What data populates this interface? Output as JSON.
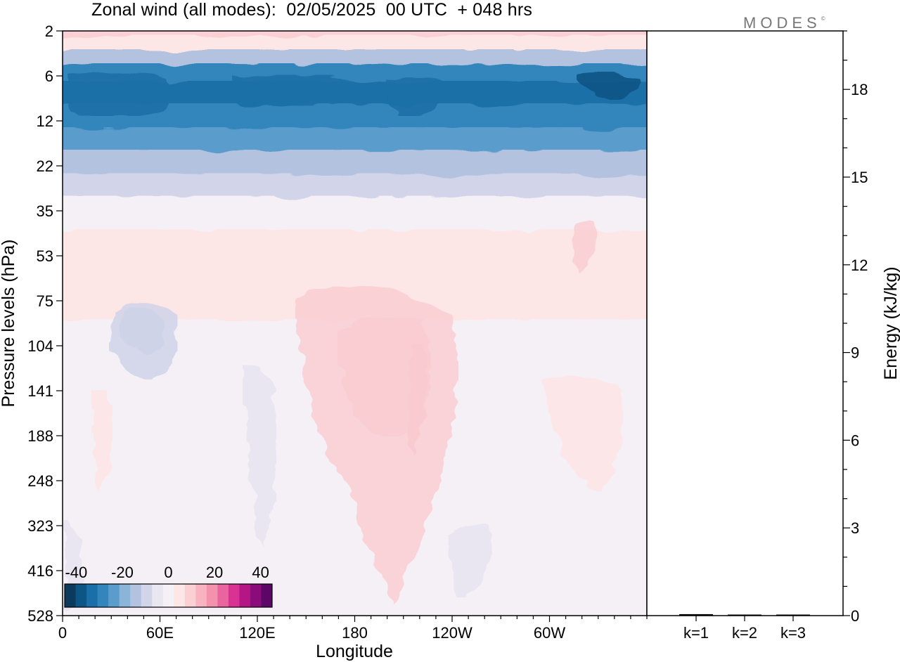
{
  "title": "Zonal wind (all modes):  02/05/2025  00 UTC  + 048 hrs",
  "logo": "MODES",
  "logo_mark": "©",
  "chart_data": [
    {
      "type": "heatmap",
      "xlabel": "Longitude",
      "ylabel": "Pressure levels (hPa)",
      "x_ticks": [
        "0",
        "60E",
        "120E",
        "180",
        "120W",
        "60W"
      ],
      "x_tick_degrees": [
        0,
        60,
        120,
        180,
        240,
        300
      ],
      "xlim": [
        0,
        360
      ],
      "y_ticks": [
        "2",
        "6",
        "12",
        "22",
        "35",
        "53",
        "75",
        "104",
        "141",
        "188",
        "248",
        "323",
        "416",
        "528"
      ],
      "colorbar": {
        "tick_labels": [
          "-40",
          "-20",
          "0",
          "20",
          "40"
        ],
        "tick_values": [
          -40,
          -20,
          0,
          20,
          40
        ],
        "range": [
          -45,
          45
        ],
        "colors": [
          "#0b3a5c",
          "#0d5585",
          "#1a6fa8",
          "#3386bb",
          "#5a9ccb",
          "#8ab4d8",
          "#b3c2de",
          "#d2d5e9",
          "#e9e6f1",
          "#f5f0f6",
          "#fde6e6",
          "#fad0d4",
          "#f7b3c0",
          "#f491ad",
          "#ea64a0",
          "#d93293",
          "#b51686",
          "#8a0b79",
          "#5c0667"
        ]
      },
      "layers": [
        {
          "level": "2",
          "wind": 10
        },
        {
          "level": "3",
          "wind": 4
        },
        {
          "level": "4",
          "wind": -15
        },
        {
          "level": "6",
          "wind": -30
        },
        {
          "level": "8",
          "wind": -33
        },
        {
          "level": "12",
          "wind": -28
        },
        {
          "level": "16",
          "wind": -24
        },
        {
          "level": "22",
          "wind": -16
        },
        {
          "level": "28",
          "wind": -8
        },
        {
          "level": "35",
          "wind": -2
        },
        {
          "level": "53",
          "wind": 5
        },
        {
          "level": "75",
          "wind": 3
        },
        {
          "level": "104",
          "wind": 0
        },
        {
          "level": "141",
          "wind": 1
        },
        {
          "level": "188",
          "wind": 1
        },
        {
          "level": "248",
          "wind": 0
        },
        {
          "level": "323",
          "wind": -1
        },
        {
          "level": "416",
          "wind": -1
        },
        {
          "level": "528",
          "wind": 0
        }
      ]
    },
    {
      "type": "bar",
      "ylabel": "Energy (kJ/kg)",
      "categories": [
        "k=1",
        "k=2",
        "k=3"
      ],
      "values": [
        0.05,
        0.02,
        0.02
      ],
      "ylim": [
        0,
        20
      ],
      "y_ticks": [
        0,
        3,
        6,
        9,
        12,
        15,
        18
      ]
    }
  ]
}
